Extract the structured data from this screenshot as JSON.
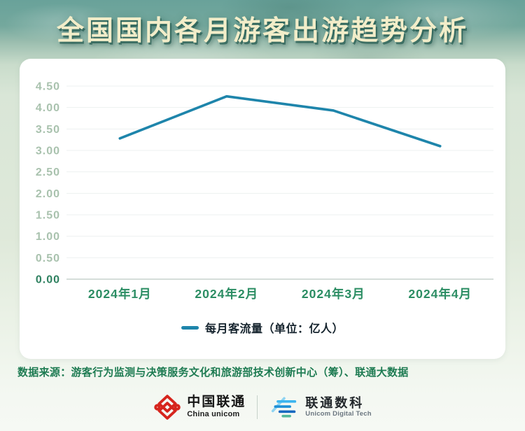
{
  "title": "全国国内各月游客出游趋势分析",
  "chart_data": {
    "type": "line",
    "categories": [
      "2024年1月",
      "2024年2月",
      "2024年3月",
      "2024年4月"
    ],
    "series": [
      {
        "name": "每月客流量（单位：亿人）",
        "values": [
          3.28,
          4.26,
          3.93,
          3.1
        ]
      }
    ],
    "title": "",
    "xlabel": "",
    "ylabel": "",
    "ylim": [
      0,
      4.5
    ],
    "ytick_step": 0.5,
    "ytick_labels": [
      "0.00",
      "0.50",
      "1.00",
      "1.50",
      "2.00",
      "2.50",
      "3.00",
      "3.50",
      "4.00",
      "4.50"
    ],
    "grid": true,
    "legend_position": "bottom",
    "line_color": "#1e85ab",
    "axis_label_color": "#a9c2ae",
    "axis_zero_label_color": "#2f8160",
    "x_label_color": "#2b8d63",
    "gridline_color": "#edf1f0",
    "baseline_color": "#bcc9c2"
  },
  "legend": {
    "label": "每月客流量（单位：亿人）"
  },
  "footer": {
    "source": "数据来源：游客行为监测与决策服务文化和旅游部技术创新中心（筹）、联通大数据"
  },
  "logos": {
    "unicom": {
      "cn": "中国联通",
      "en": "China unicom",
      "color": "#d6251d"
    },
    "digital": {
      "cn": "联通数科",
      "en": "Unicom Digital Tech",
      "color": "#1e88d2"
    }
  },
  "colors": {
    "title_text": "#f2edc9",
    "title_shadow": "#1c544a",
    "card_bg": "#ffffff",
    "source_text": "#1e7b52",
    "header_teal": "#69a29a"
  }
}
